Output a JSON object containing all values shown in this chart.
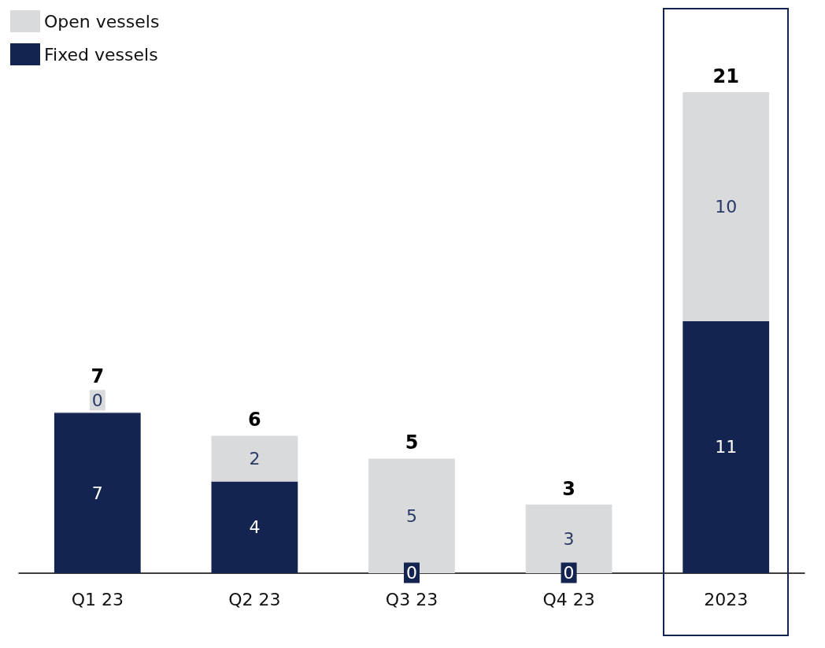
{
  "chart_data": {
    "type": "bar",
    "stacked": true,
    "categories": [
      "Q1 23",
      "Q2 23",
      "Q3 23",
      "Q4 23",
      "2023"
    ],
    "series": [
      {
        "name": "Fixed vessels",
        "color": "#12244f",
        "values": [
          7,
          4,
          0,
          0,
          11
        ]
      },
      {
        "name": "Open vessels",
        "color": "#d9dadc",
        "values": [
          0,
          2,
          5,
          3,
          10
        ]
      }
    ],
    "totals": [
      "7",
      "6",
      "5",
      "3",
      "21"
    ],
    "data_labels": true,
    "legend": "top left",
    "grid": false
  }
}
